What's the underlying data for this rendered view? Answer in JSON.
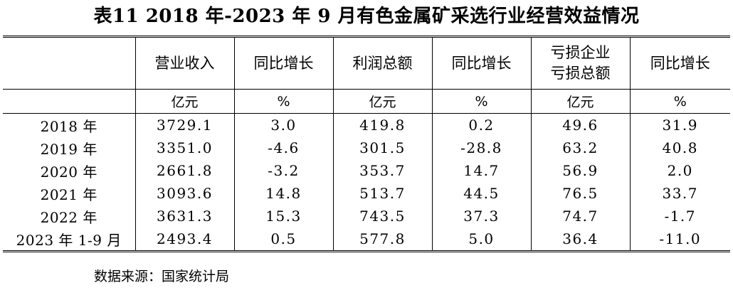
{
  "title": "表11   2018 年-2023 年 9 月有色金属矿采选行业经营效益情况",
  "table": {
    "headers": [
      "营业收入",
      "同比增长",
      "利润总额",
      "同比增长",
      "亏损企业亏损总额",
      "同比增长"
    ],
    "header_lines": [
      [
        "营业收入"
      ],
      [
        "同比增长"
      ],
      [
        "利润总额"
      ],
      [
        "同比增长"
      ],
      [
        "亏损企业",
        "亏损总额"
      ],
      [
        "同比增长"
      ]
    ],
    "units": [
      "亿元",
      "%",
      "亿元",
      "%",
      "亿元",
      "%"
    ],
    "rows": [
      {
        "label": "2018 年",
        "values": [
          "3729.1",
          "3.0",
          "419.8",
          "0.2",
          "49.6",
          "31.9"
        ]
      },
      {
        "label": "2019 年",
        "values": [
          "3351.0",
          "-4.6",
          "301.5",
          "-28.8",
          "63.2",
          "40.8"
        ]
      },
      {
        "label": "2020 年",
        "values": [
          "2661.8",
          "-3.2",
          "353.7",
          "14.7",
          "56.9",
          "2.0"
        ]
      },
      {
        "label": "2021 年",
        "values": [
          "3093.6",
          "14.8",
          "513.7",
          "44.5",
          "76.5",
          "33.7"
        ]
      },
      {
        "label": "2022 年",
        "values": [
          "3631.3",
          "15.3",
          "743.5",
          "37.3",
          "74.7",
          "-1.7"
        ]
      },
      {
        "label": "2023 年 1-9 月",
        "values": [
          "2493.4",
          "0.5",
          "577.8",
          "5.0",
          "36.4",
          "-11.0"
        ]
      }
    ]
  },
  "source": "数据来源：国家统计局"
}
